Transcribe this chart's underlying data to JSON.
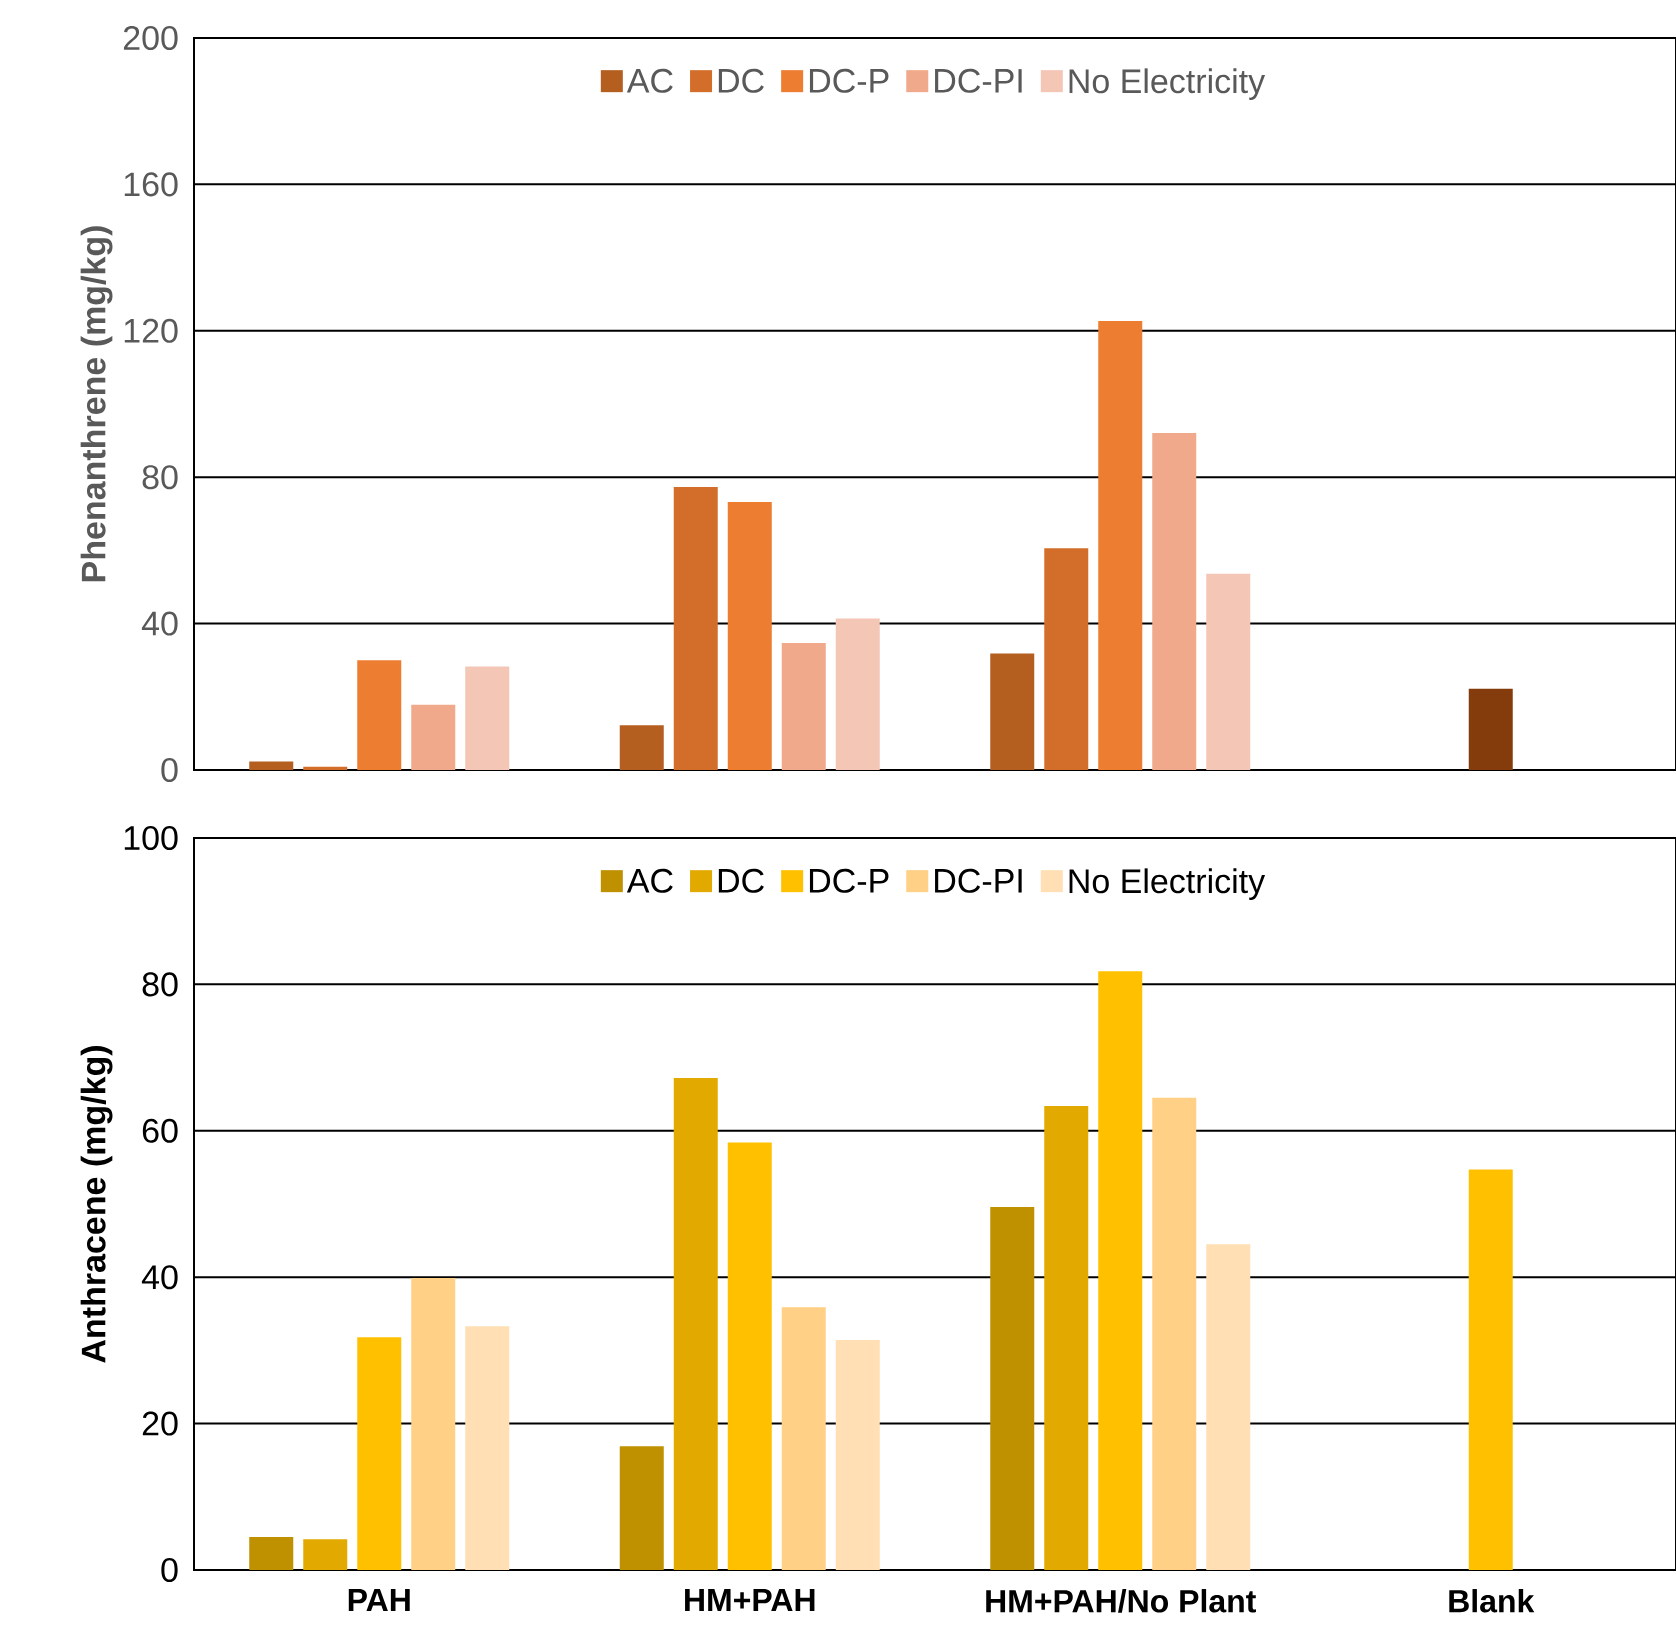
{
  "chart_data": [
    {
      "type": "bar",
      "ylabel": "Phenanthrene (mg/kg)",
      "categories": [
        null,
        null,
        null,
        null
      ],
      "ylim": [
        0,
        200
      ],
      "yticks": [
        0,
        40,
        80,
        120,
        160,
        200
      ],
      "grid": "y",
      "legend": "top",
      "tick_labels": "y",
      "series": [
        {
          "name": "AC",
          "color": "#b45f20",
          "values": [
            2.3,
            12.2,
            31.8,
            null
          ]
        },
        {
          "name": "DC",
          "color": "#d36e2a",
          "values": [
            0.9,
            77.3,
            60.6,
            null
          ]
        },
        {
          "name": "DC-P",
          "color": "#ed7d31",
          "colors": [
            "#ed7d31",
            "#ed7d31",
            "#ed7d31",
            "#843c0c"
          ],
          "values": [
            30,
            73.2,
            122.7,
            22.2
          ]
        },
        {
          "name": "DC-PI",
          "color": "#f0a98a",
          "values": [
            17.8,
            34.7,
            92.1,
            null
          ]
        },
        {
          "name": "No Electricity",
          "color": "#f4c6b5",
          "values": [
            28.3,
            41.4,
            53.6,
            null
          ]
        }
      ]
    },
    {
      "type": "bar",
      "ylabel": "Anthracene (mg/kg)",
      "categories": [
        "PAH",
        "HM+PAH",
        "HM+PAH/No Plant",
        "Blank"
      ],
      "ylim": [
        0,
        100
      ],
      "yticks": [
        0,
        20,
        40,
        60,
        80,
        100
      ],
      "grid": "y",
      "legend": "top",
      "series": [
        {
          "name": "AC",
          "color": "#bf9000",
          "values": [
            4.5,
            16.9,
            49.6,
            null
          ]
        },
        {
          "name": "DC",
          "color": "#e2aa00",
          "values": [
            4.2,
            67.2,
            63.4,
            null
          ]
        },
        {
          "name": "DC-P",
          "color": "#ffc000",
          "values": [
            31.8,
            58.4,
            81.8,
            54.7
          ]
        },
        {
          "name": "DC-PI",
          "color": "#ffd085",
          "values": [
            39.9,
            35.9,
            64.5,
            null
          ]
        },
        {
          "name": "No Electricity",
          "color": "#ffdfb3",
          "values": [
            33.3,
            31.4,
            44.5,
            null
          ]
        }
      ]
    }
  ]
}
